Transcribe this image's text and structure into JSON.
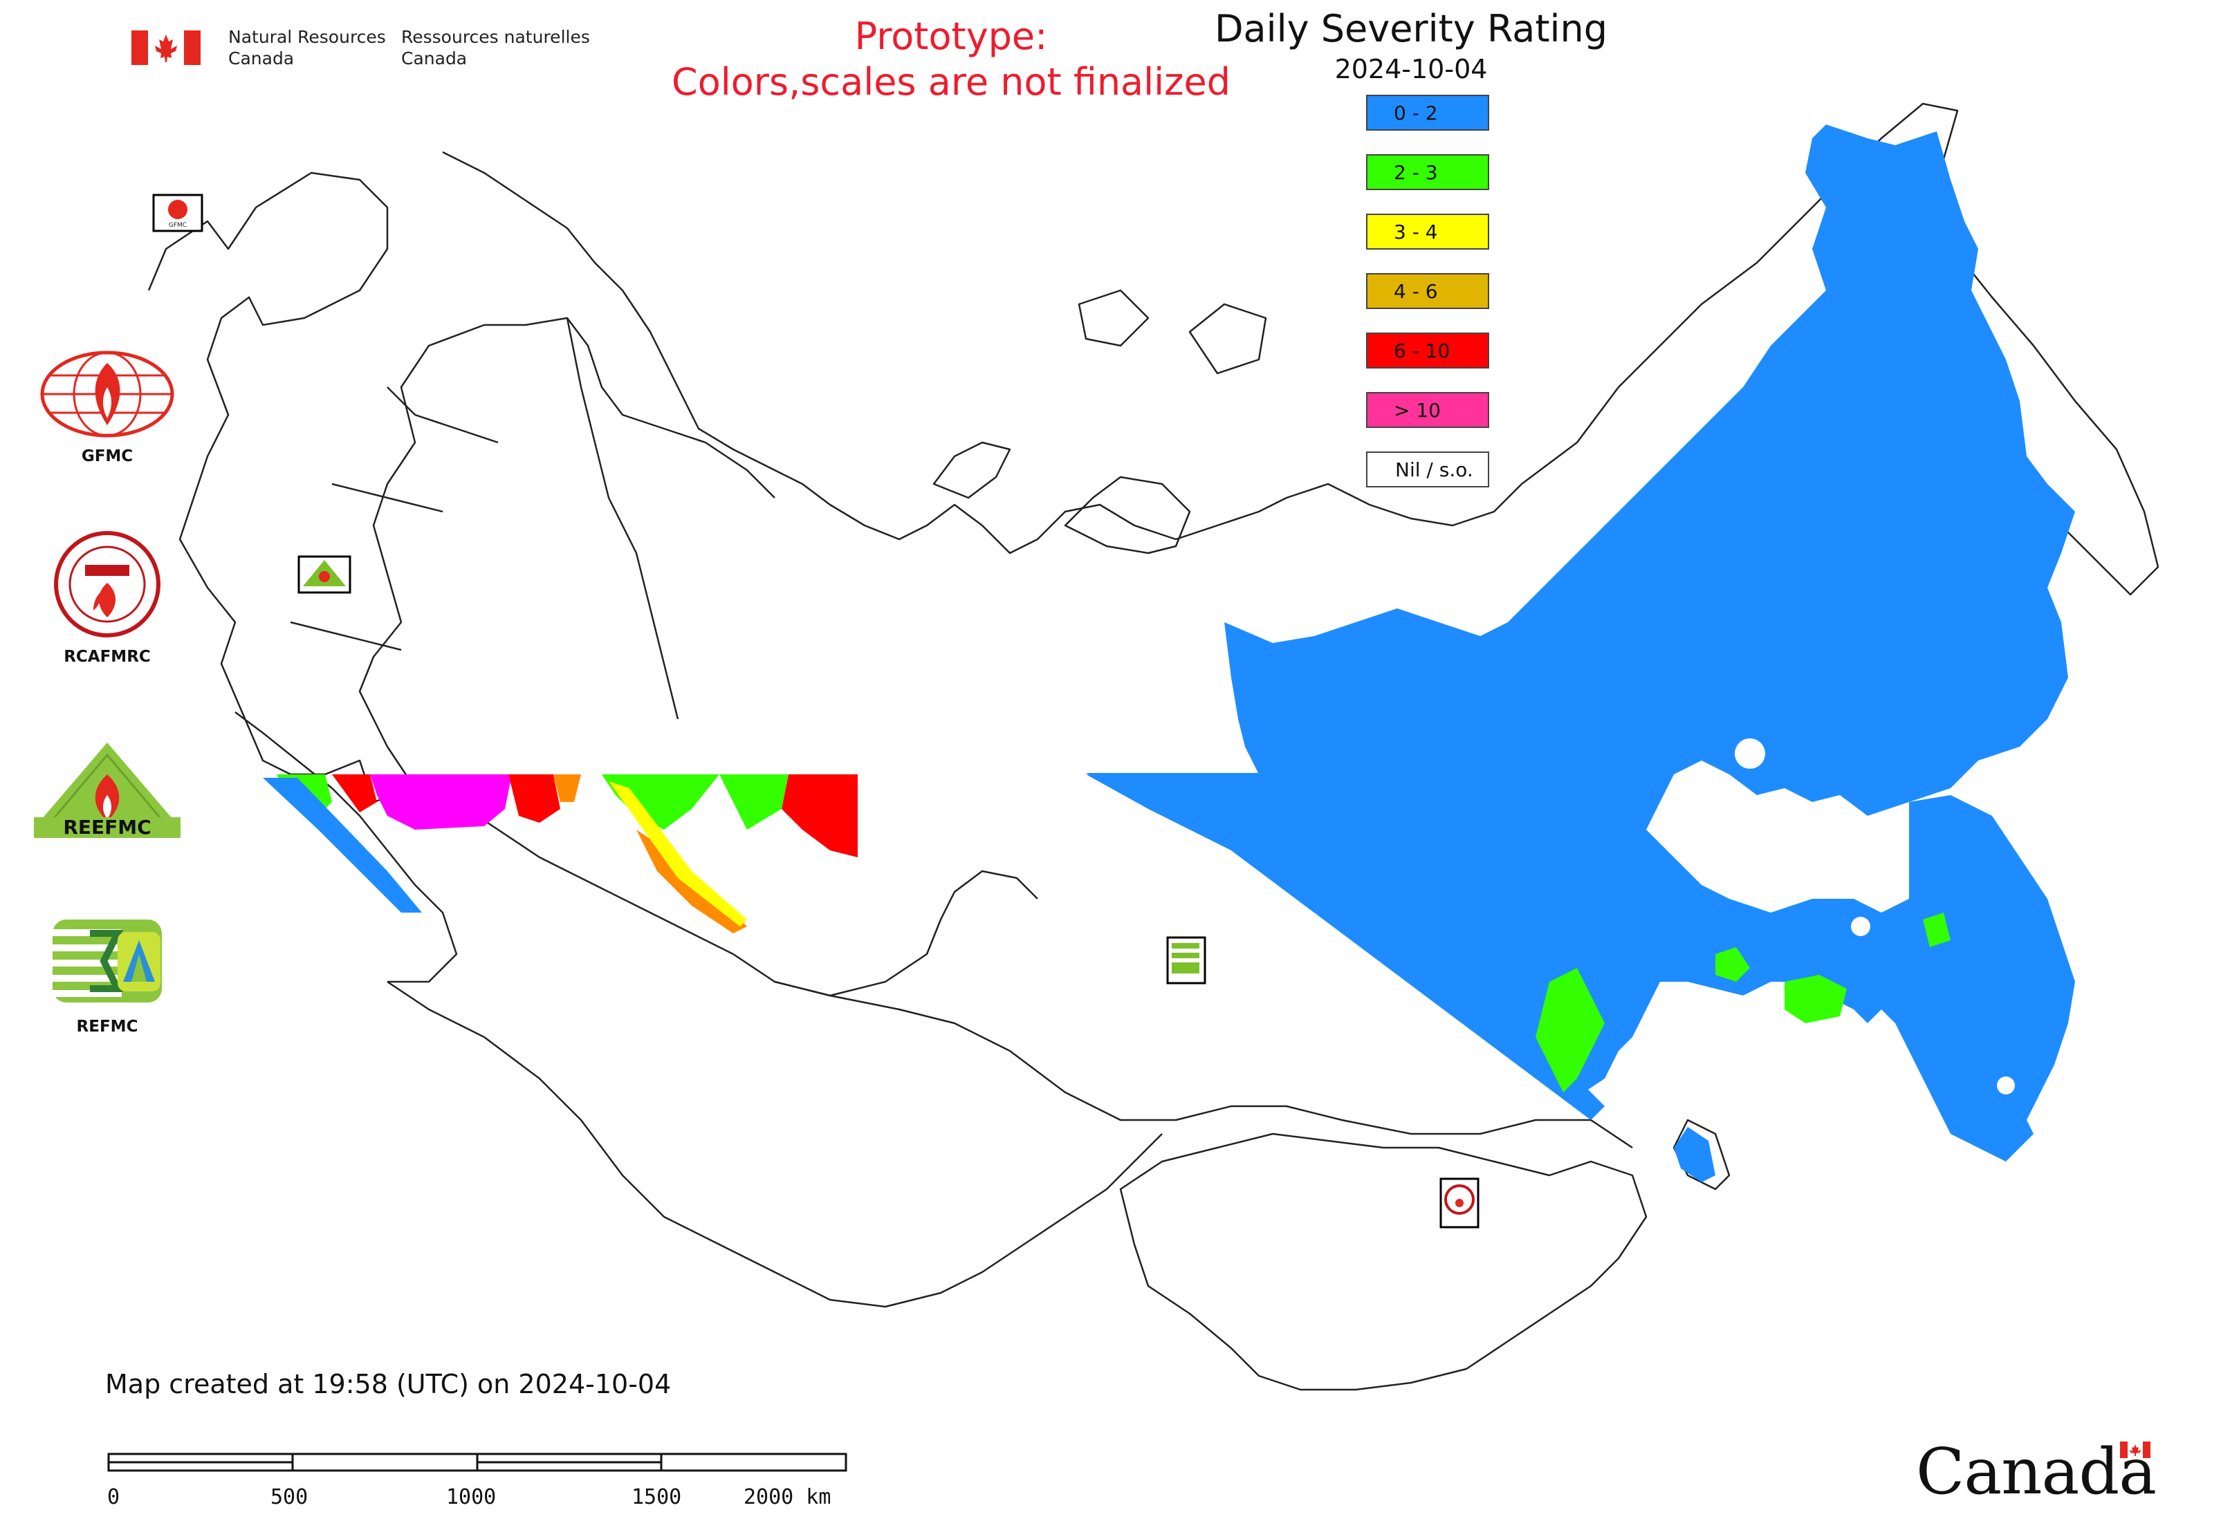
{
  "header": {
    "agency_en": "Natural Resources\nCanada",
    "agency_fr": "Ressources naturelles\nCanada",
    "prototype_line1": "Prototype:",
    "prototype_line2": "Colors,scales are not finalized",
    "prototype_color": "#ee1c2e"
  },
  "map": {
    "title": "Daily Severity Rating",
    "date": "2024-10-04",
    "legend": [
      {
        "label": "0 - 2",
        "color": "#1e8cff"
      },
      {
        "label": "2 - 3",
        "color": "#33ff00"
      },
      {
        "label": "3 - 4",
        "color": "#ffff00"
      },
      {
        "label": "4 - 6",
        "color": "#e0b400"
      },
      {
        "label": "6 - 10",
        "color": "#ff0000"
      },
      {
        "label": "> 10",
        "color": "#ff3399"
      },
      {
        "label": "Nil / s.o.",
        "color": "#ffffff"
      }
    ],
    "map_icons": [
      {
        "name": "gfmc-map-icon",
        "label": "GFMC"
      },
      {
        "name": "reefmc-map-icon",
        "label": "REEFMC"
      },
      {
        "name": "refmc-map-icon",
        "label": "REFMC"
      },
      {
        "name": "rcafmrc-map-icon",
        "label": "RCAFMRC"
      }
    ]
  },
  "logos": [
    {
      "label": "GFMC",
      "icon": "gfmc-logo-icon"
    },
    {
      "label": "RCAFMRC",
      "icon": "rcafmrc-logo-icon"
    },
    {
      "label": "",
      "icon": "reefmc-logo-icon",
      "wordmark": "REEFMC"
    },
    {
      "label": "REFMC",
      "icon": "refmc-logo-icon"
    }
  ],
  "footer": {
    "created": "Map created at 19:58 (UTC) on 2024-10-04"
  },
  "scale_bar": {
    "ticks": [
      "0",
      "500",
      "1000",
      "1500",
      "2000 km"
    ]
  },
  "wordmark": "Canada"
}
